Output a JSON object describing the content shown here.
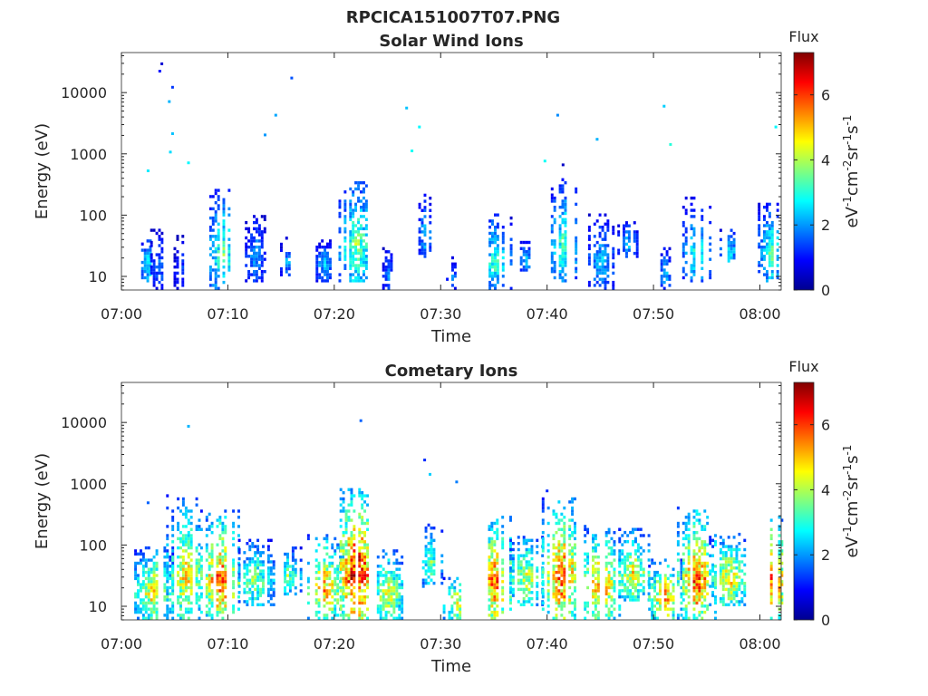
{
  "figure_title": "RPCICA151007T07.PNG",
  "chart_data": [
    {
      "type": "heatmap",
      "title": "Solar Wind Ions",
      "xlabel": "Time",
      "ylabel": "Energy (eV)",
      "yscale": "log",
      "x_tick_labels": [
        "07:00",
        "07:10",
        "07:20",
        "07:30",
        "07:40",
        "07:50",
        "08:00"
      ],
      "y_tick_labels": [
        "10",
        "100",
        "1000",
        "10000"
      ],
      "xlim": [
        "07:00",
        "08:02"
      ],
      "ylim": [
        6,
        45000
      ],
      "colorbar": {
        "label": "eV-1cm-2sr-1s-1",
        "title": "Flux",
        "ticks": [
          "0",
          "2",
          "4",
          "6"
        ],
        "range": [
          0,
          7.3
        ],
        "colormap": "jet"
      },
      "bursts": [
        {
          "t": "07:02.5",
          "emin": 8,
          "emax": 45,
          "peak": 2.9,
          "spread": 0.9
        },
        {
          "t": "07:03.5",
          "emin": 6,
          "emax": 60,
          "peak": 1.8,
          "spread": 0.8
        },
        {
          "t": "07:05.5",
          "emin": 6,
          "emax": 45,
          "peak": 1.6,
          "spread": 0.6
        },
        {
          "t": "07:09.5",
          "emin": 6,
          "emax": 250,
          "peak": 3.4,
          "spread": 1.5
        },
        {
          "t": "07:12.5",
          "emin": 8,
          "emax": 100,
          "peak": 2.2,
          "spread": 0.9
        },
        {
          "t": "07:15.5",
          "emin": 10,
          "emax": 40,
          "peak": 2.2,
          "spread": 0.6
        },
        {
          "t": "07:19.0",
          "emin": 8,
          "emax": 40,
          "peak": 2.3,
          "spread": 1.0
        },
        {
          "t": "07:22.0",
          "emin": 8,
          "emax": 350,
          "peak": 3.8,
          "spread": 1.6
        },
        {
          "t": "07:25.0",
          "emin": 6,
          "emax": 30,
          "peak": 2.0,
          "spread": 0.5
        },
        {
          "t": "07:28.5",
          "emin": 20,
          "emax": 200,
          "peak": 2.6,
          "spread": 0.6
        },
        {
          "t": "07:31.0",
          "emin": 6,
          "emax": 20,
          "peak": 1.8,
          "spread": 0.5
        },
        {
          "t": "07:35.0",
          "emin": 6,
          "emax": 100,
          "peak": 3.2,
          "spread": 1.5
        },
        {
          "t": "07:38.0",
          "emin": 12,
          "emax": 40,
          "peak": 2.4,
          "spread": 0.8
        },
        {
          "t": "07:41.5",
          "emin": 8,
          "emax": 400,
          "peak": 3.3,
          "spread": 1.4
        },
        {
          "t": "07:45.0",
          "emin": 6,
          "emax": 100,
          "peak": 2.4,
          "spread": 1.4
        },
        {
          "t": "07:47.5",
          "emin": 20,
          "emax": 80,
          "peak": 2.4,
          "spread": 0.9
        },
        {
          "t": "07:51.0",
          "emin": 6,
          "emax": 30,
          "peak": 2.4,
          "spread": 0.6
        },
        {
          "t": "07:54.0",
          "emin": 8,
          "emax": 180,
          "peak": 3.0,
          "spread": 1.3
        },
        {
          "t": "07:57.0",
          "emin": 15,
          "emax": 60,
          "peak": 2.9,
          "spread": 0.8
        },
        {
          "t": "08:01.0",
          "emin": 8,
          "emax": 150,
          "peak": 3.3,
          "spread": 1.2
        }
      ],
      "isolated_points": [
        {
          "t": "07:03.8",
          "e": 29000,
          "v": 0.6
        },
        {
          "t": "07:03.6",
          "e": 22000,
          "v": 1.0
        },
        {
          "t": "07:04.5",
          "e": 7000,
          "v": 2.2
        },
        {
          "t": "07:04.8",
          "e": 12000,
          "v": 1.3
        },
        {
          "t": "07:04.8",
          "e": 2100,
          "v": 2.3
        },
        {
          "t": "07:04.6",
          "e": 1050,
          "v": 2.5
        },
        {
          "t": "07:06.3",
          "e": 700,
          "v": 2.7
        },
        {
          "t": "07:02.5",
          "e": 520,
          "v": 2.6
        },
        {
          "t": "07:13.5",
          "e": 2000,
          "v": 2.0
        },
        {
          "t": "07:14.5",
          "e": 4200,
          "v": 2.1
        },
        {
          "t": "07:16.0",
          "e": 17000,
          "v": 1.5
        },
        {
          "t": "07:26.8",
          "e": 5500,
          "v": 2.3
        },
        {
          "t": "07:28.0",
          "e": 2700,
          "v": 2.7
        },
        {
          "t": "07:27.3",
          "e": 1100,
          "v": 2.8
        },
        {
          "t": "07:41.0",
          "e": 4200,
          "v": 1.9
        },
        {
          "t": "07:39.8",
          "e": 750,
          "v": 2.8
        },
        {
          "t": "07:41.5",
          "e": 650,
          "v": 0.5
        },
        {
          "t": "07:44.7",
          "e": 1700,
          "v": 2.2
        },
        {
          "t": "07:51.0",
          "e": 5900,
          "v": 2.4
        },
        {
          "t": "07:51.6",
          "e": 1400,
          "v": 3.0
        },
        {
          "t": "08:01.5",
          "e": 2700,
          "v": 2.7
        }
      ]
    },
    {
      "type": "heatmap",
      "title": "Cometary Ions",
      "xlabel": "Time",
      "ylabel": "Energy (eV)",
      "yscale": "log",
      "x_tick_labels": [
        "07:00",
        "07:10",
        "07:20",
        "07:30",
        "07:40",
        "07:50",
        "08:00"
      ],
      "y_tick_labels": [
        "10",
        "100",
        "1000",
        "10000"
      ],
      "xlim": [
        "07:00",
        "08:02"
      ],
      "ylim": [
        6,
        45000
      ],
      "colorbar": {
        "label": "eV-1cm-2sr-1s-1",
        "title": "Flux",
        "ticks": [
          "0",
          "2",
          "4",
          "6"
        ],
        "range": [
          0,
          7.3
        ],
        "colormap": "jet"
      },
      "bursts": [
        {
          "t": "07:03.0",
          "emin": 6,
          "emax": 90,
          "peak": 5.0,
          "spread": 1.8
        },
        {
          "t": "07:06.0",
          "emin": 6,
          "emax": 600,
          "peak": 4.8,
          "spread": 1.8
        },
        {
          "t": "07:09.2",
          "emin": 6,
          "emax": 350,
          "peak": 6.0,
          "spread": 1.8
        },
        {
          "t": "07:12.5",
          "emin": 10,
          "emax": 120,
          "peak": 3.9,
          "spread": 1.8
        },
        {
          "t": "07:15.5",
          "emin": 15,
          "emax": 100,
          "peak": 3.6,
          "spread": 1.5
        },
        {
          "t": "07:19.0",
          "emin": 6,
          "emax": 150,
          "peak": 5.3,
          "spread": 1.8
        },
        {
          "t": "07:22.0",
          "emin": 6,
          "emax": 800,
          "peak": 6.8,
          "spread": 2.0
        },
        {
          "t": "07:25.0",
          "emin": 6,
          "emax": 80,
          "peak": 4.6,
          "spread": 1.5
        },
        {
          "t": "07:29.0",
          "emin": 20,
          "emax": 200,
          "peak": 3.7,
          "spread": 1.0
        },
        {
          "t": "07:31.5",
          "emin": 6,
          "emax": 30,
          "peak": 4.8,
          "spread": 1.3
        },
        {
          "t": "07:35.0",
          "emin": 6,
          "emax": 300,
          "peak": 5.8,
          "spread": 1.8
        },
        {
          "t": "07:38.0",
          "emin": 10,
          "emax": 150,
          "peak": 4.4,
          "spread": 1.8
        },
        {
          "t": "07:41.3",
          "emin": 6,
          "emax": 600,
          "peak": 6.0,
          "spread": 1.8
        },
        {
          "t": "07:45.0",
          "emin": 6,
          "emax": 200,
          "peak": 5.6,
          "spread": 1.8
        },
        {
          "t": "07:48.0",
          "emin": 12,
          "emax": 180,
          "peak": 4.6,
          "spread": 1.8
        },
        {
          "t": "07:51.0",
          "emin": 6,
          "emax": 60,
          "peak": 5.5,
          "spread": 1.5
        },
        {
          "t": "07:54.0",
          "emin": 6,
          "emax": 400,
          "peak": 6.0,
          "spread": 1.8
        },
        {
          "t": "07:57.0",
          "emin": 10,
          "emax": 150,
          "peak": 4.9,
          "spread": 1.8
        },
        {
          "t": "08:01.0",
          "emin": 6,
          "emax": 300,
          "peak": 5.9,
          "spread": 1.8
        }
      ],
      "isolated_points": [
        {
          "t": "07:02.5",
          "e": 480,
          "v": 1.6
        },
        {
          "t": "07:06.3",
          "e": 8500,
          "v": 2.2
        },
        {
          "t": "07:22.5",
          "e": 10500,
          "v": 1.6
        },
        {
          "t": "07:28.5",
          "e": 2400,
          "v": 1.2
        },
        {
          "t": "07:29.0",
          "e": 1400,
          "v": 2.4
        },
        {
          "t": "07:31.5",
          "e": 1050,
          "v": 1.8
        },
        {
          "t": "07:40.0",
          "e": 750,
          "v": 1.2
        }
      ]
    }
  ]
}
